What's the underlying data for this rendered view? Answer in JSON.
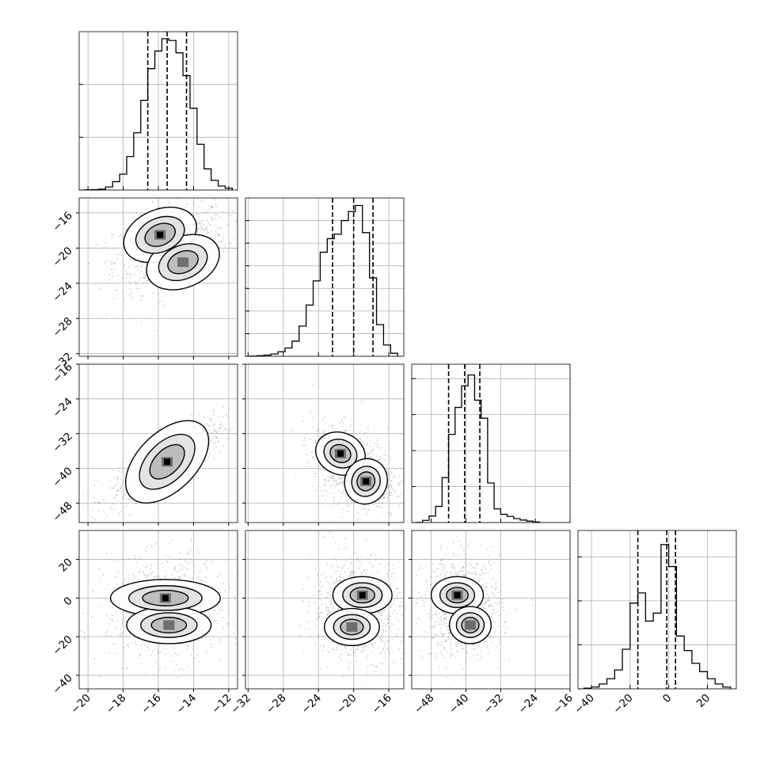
{
  "chart_data": {
    "type": "corner",
    "grid": true,
    "colors": {
      "frame": "#000000",
      "grid": "#b0b0b0",
      "points": "#7f7f7f",
      "density": "#000000"
    },
    "parameters": [
      {
        "range": [
          -20.5,
          -11.5
        ],
        "ticks": [
          -20,
          -18,
          -16,
          -14,
          -12
        ],
        "tick_labels": [
          "−20",
          "−18",
          "−16",
          "−14",
          "−12"
        ],
        "quantiles": [
          -16.6,
          -15.5,
          -14.4
        ],
        "hist": {
          "bins": [
            -20.2,
            -19.8,
            -19.4,
            -19.0,
            -18.6,
            -18.2,
            -17.8,
            -17.4,
            -17.0,
            -16.6,
            -16.2,
            -15.8,
            -15.4,
            -15.0,
            -14.6,
            -14.2,
            -13.8,
            -13.4,
            -13.0,
            -12.6,
            -12.2,
            -11.8
          ],
          "counts": [
            2,
            4,
            10,
            35,
            95,
            180,
            380,
            650,
            1020,
            1380,
            1580,
            1720,
            1700,
            1560,
            1300,
            930,
            520,
            240,
            110,
            45,
            20
          ],
          "ymax": 1800,
          "y_ticks": [
            0,
            600,
            1200
          ]
        }
      },
      {
        "range": [
          -32.3,
          -14.3
        ],
        "ticks": [
          -32,
          -28,
          -24,
          -20,
          -16
        ],
        "tick_labels": [
          "−32",
          "−28",
          "−24",
          "−20",
          "−16"
        ],
        "quantiles": [
          -22.4,
          -20.0,
          -17.8
        ],
        "hist": {
          "bins": [
            -31.8,
            -31.0,
            -30.2,
            -29.4,
            -28.6,
            -27.8,
            -27.0,
            -26.2,
            -25.4,
            -24.6,
            -23.8,
            -23.0,
            -22.2,
            -21.4,
            -20.6,
            -19.8,
            -19.0,
            -18.2,
            -17.4,
            -16.6,
            -15.8,
            -15.0
          ],
          "counts": [
            3,
            8,
            15,
            30,
            60,
            110,
            200,
            400,
            680,
            1000,
            1380,
            1560,
            1620,
            1800,
            1920,
            2000,
            1640,
            1040,
            420,
            150,
            40
          ],
          "ymax": 2100,
          "y_ticks": [
            0,
            300,
            600,
            900,
            1200,
            1500,
            1800
          ]
        }
      },
      {
        "range": [
          -52.5,
          -16
        ],
        "ticks": [
          -48,
          -40,
          -32,
          -24,
          -16
        ],
        "tick_labels": [
          "−48",
          "−40",
          "−32",
          "−24",
          "−16"
        ],
        "quantiles": [
          -44.0,
          -40.3,
          -36.8
        ],
        "hist": {
          "bins": [
            -51.5,
            -50.0,
            -48.5,
            -47.0,
            -45.5,
            -44.0,
            -42.5,
            -41.0,
            -39.5,
            -38.0,
            -36.5,
            -35.0,
            -33.5,
            -32.0,
            -30.5,
            -29.0,
            -27.5,
            -26.0,
            -24.5,
            -23.0
          ],
          "counts": [
            2,
            60,
            180,
            450,
            1250,
            2450,
            3200,
            3800,
            4100,
            3400,
            2900,
            1100,
            380,
            230,
            170,
            110,
            70,
            40,
            15
          ],
          "ymax": 4400,
          "y_ticks": [
            0,
            1000,
            2000,
            3000,
            4000
          ]
        }
      },
      {
        "range": [
          -47,
          35
        ],
        "ticks": [
          -40,
          -20,
          0,
          20
        ],
        "tick_labels": [
          "−40",
          "−20",
          "0",
          "20"
        ],
        "quantiles": [
          -16,
          -1,
          3.5
        ],
        "hist": {
          "bins": [
            -44,
            -40,
            -36,
            -32,
            -28,
            -24,
            -20,
            -16,
            -12,
            -8,
            -4,
            0,
            4,
            8,
            12,
            16,
            20,
            24,
            28,
            32
          ],
          "counts": [
            15,
            40,
            110,
            230,
            430,
            900,
            1950,
            2180,
            1540,
            1720,
            3280,
            2780,
            1200,
            870,
            580,
            390,
            230,
            110,
            40
          ],
          "ymax": 3600,
          "y_ticks": [
            0,
            1000,
            2000,
            3000
          ]
        }
      }
    ],
    "pairs": [
      {
        "col": 0,
        "row": 1,
        "modes": [
          {
            "x": -15.9,
            "y": -18.5,
            "sx": 0.9,
            "sy": 1.2,
            "w": 1.0
          },
          {
            "x": -14.6,
            "y": -21.6,
            "sx": 0.9,
            "sy": 1.2,
            "w": 0.8
          }
        ],
        "spread": [
          1.6,
          2.4
        ],
        "corr": 0.35
      },
      {
        "col": 0,
        "row": 2,
        "modes": [
          {
            "x": -15.5,
            "y": -38.5,
            "sx": 1.2,
            "sy": 2.8,
            "w": 1.0
          }
        ],
        "spread": [
          1.6,
          4.5
        ],
        "corr": 0.82
      },
      {
        "col": 1,
        "row": 2,
        "modes": [
          {
            "x": -21.5,
            "y": -36.6,
            "sx": 1.2,
            "sy": 2.0,
            "w": 0.8
          },
          {
            "x": -18.6,
            "y": -43.0,
            "sx": 1.0,
            "sy": 2.2,
            "w": 1.0
          }
        ],
        "spread": [
          2.4,
          4.8
        ],
        "corr": -0.35
      },
      {
        "col": 0,
        "row": 3,
        "modes": [
          {
            "x": -15.6,
            "y": 0,
            "sx": 1.3,
            "sy": 4.0,
            "w": 1.0
          },
          {
            "x": -15.4,
            "y": -14,
            "sx": 1.0,
            "sy": 4.0,
            "w": 0.7
          }
        ],
        "spread": [
          1.7,
          13
        ],
        "corr": 0.0
      },
      {
        "col": 1,
        "row": 3,
        "modes": [
          {
            "x": -19.0,
            "y": 1.5,
            "sx": 1.4,
            "sy": 4.0,
            "w": 1.0
          },
          {
            "x": -20.2,
            "y": -15,
            "sx": 1.3,
            "sy": 4.0,
            "w": 0.7
          }
        ],
        "spread": [
          2.6,
          13
        ],
        "corr": 0.0
      },
      {
        "col": 2,
        "row": 3,
        "modes": [
          {
            "x": -42.0,
            "y": 1.5,
            "sx": 2.5,
            "sy": 4.0,
            "w": 1.0
          },
          {
            "x": -39.0,
            "y": -14,
            "sx": 2.0,
            "sy": 4.0,
            "w": 0.7
          }
        ],
        "spread": [
          4.5,
          13
        ],
        "corr": 0.0
      }
    ]
  }
}
